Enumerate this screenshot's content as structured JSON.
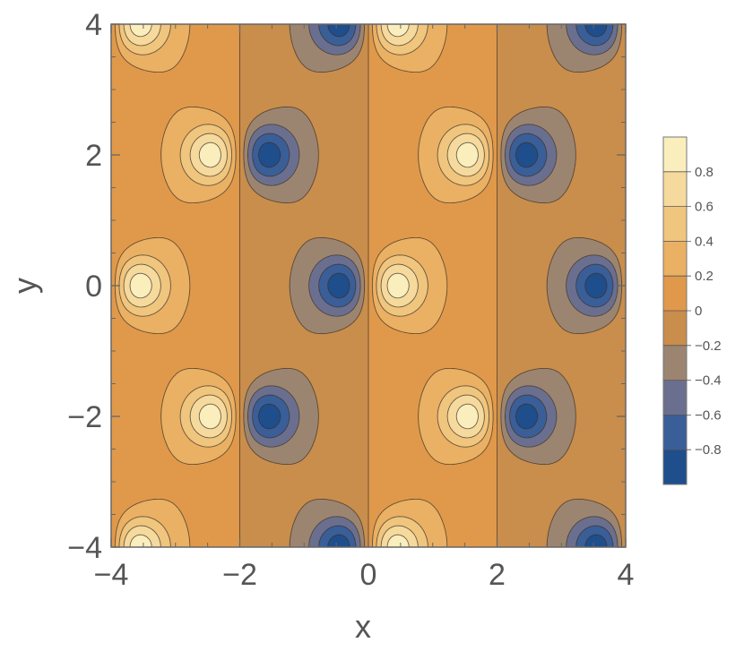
{
  "chart_data": {
    "type": "heatmap",
    "subtype": "contour",
    "xlabel": "x",
    "ylabel": "y",
    "xlim": [
      -4,
      4
    ],
    "ylim": [
      -4,
      4
    ],
    "x_ticks": [
      -4,
      -2,
      0,
      2,
      4
    ],
    "y_ticks": [
      -4,
      -2,
      0,
      2,
      4
    ],
    "x_tick_labels": [
      "−4",
      "−2",
      "0",
      "2",
      "4"
    ],
    "y_tick_labels": [
      "−4",
      "−2",
      "0",
      "2",
      "4"
    ],
    "contour_levels": [
      -0.8,
      -0.6,
      -0.4,
      -0.2,
      0,
      0.2,
      0.4,
      0.6,
      0.8
    ],
    "value_range": [
      -1,
      1
    ],
    "colorscale": [
      "#1f4e8c",
      "#3a5e98",
      "#6b6f8f",
      "#9c8570",
      "#c98d4c",
      "#e0994a",
      "#eab063",
      "#f0c57e",
      "#f6d99c",
      "#fbeebd"
    ],
    "legend": {
      "placement": "right",
      "ticks": [
        0.8,
        0.6,
        0.4,
        0.2,
        0,
        -0.2,
        -0.4,
        -0.6,
        -0.8
      ],
      "tick_labels": [
        "0.8",
        "0.6",
        "0.4",
        "0.2",
        "0",
        "−0.2",
        "−0.4",
        "−0.6",
        "−0.8"
      ]
    },
    "extrema": {
      "maxima": [
        {
          "x": -3.6,
          "y": 4
        },
        {
          "x": -2.4,
          "y": 2
        },
        {
          "x": -3.6,
          "y": 0
        },
        {
          "x": -2.4,
          "y": -2
        },
        {
          "x": -3.6,
          "y": -4
        },
        {
          "x": 0.4,
          "y": 4
        },
        {
          "x": 1.6,
          "y": 2
        },
        {
          "x": 0.4,
          "y": 0
        },
        {
          "x": 1.6,
          "y": -2
        },
        {
          "x": 0.4,
          "y": -4
        }
      ],
      "minima": [
        {
          "x": -0.4,
          "y": 4
        },
        {
          "x": -1.6,
          "y": 2
        },
        {
          "x": -0.4,
          "y": 0
        },
        {
          "x": -1.6,
          "y": -2
        },
        {
          "x": -0.4,
          "y": -4
        },
        {
          "x": 3.6,
          "y": 4
        },
        {
          "x": 2.4,
          "y": 2
        },
        {
          "x": 3.6,
          "y": 0
        },
        {
          "x": 2.4,
          "y": -2
        },
        {
          "x": 3.6,
          "y": -4
        }
      ]
    },
    "grid": false
  }
}
